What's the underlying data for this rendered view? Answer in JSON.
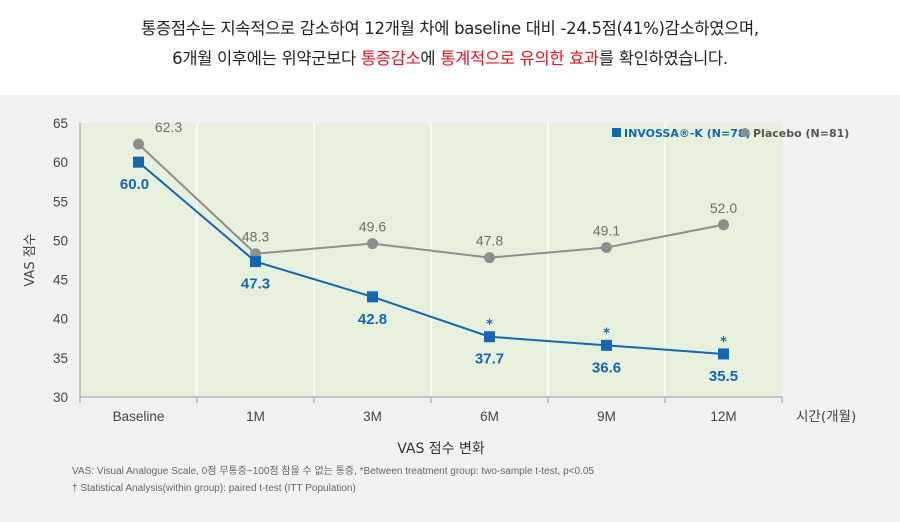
{
  "headline": {
    "line1": "통증점수는 지속적으로 감소하여 12개월 차에 baseline 대비 -24.5점(41%)감소하였으며,",
    "line2_prefix": "6개월 이후에는 위약군보다 ",
    "line2_highlight1": "통증감소",
    "line2_mid1": "에 ",
    "line2_highlight2": "통계적으로 유의한 효과",
    "line2_suffix": "를 확인하였습니다."
  },
  "colors": {
    "invossa": "#1466b3",
    "placebo": "#8e8e8e",
    "plot_bg": "#e6f0dc",
    "panel_bg": "#f1f1f1",
    "highlight": "#e0161f"
  },
  "chart_data": {
    "type": "line",
    "categories": [
      "Baseline",
      "1M",
      "3M",
      "6M",
      "9M",
      "12M"
    ],
    "x_unit_label": "시간(개월)",
    "xlabel": "VAS 점수 변화",
    "ylabel": "VAS 점수",
    "ylim": [
      30,
      65
    ],
    "yticks": [
      30,
      35,
      40,
      45,
      50,
      55,
      60,
      65
    ],
    "grid": "vertical",
    "legend_position": "top-right",
    "series": [
      {
        "name": "INVOSSA®-K (N=78)",
        "marker": "square",
        "values": [
          60.0,
          47.3,
          42.8,
          37.7,
          36.6,
          35.5
        ],
        "labels": [
          "60.0",
          "47.3",
          "42.8",
          "37.7",
          "36.6",
          "35.5"
        ],
        "significance_marks": [
          "",
          "",
          "",
          "*",
          "*",
          "*"
        ]
      },
      {
        "name": "Placebo (N=81)",
        "marker": "circle",
        "values": [
          62.3,
          48.3,
          49.6,
          47.8,
          49.1,
          52.0
        ],
        "labels": [
          "62.3",
          "48.3",
          "49.6",
          "47.8",
          "49.1",
          "52.0"
        ]
      }
    ]
  },
  "footnote": {
    "line1": "VAS: Visual Analogue Scale, 0점 무통증~100점 참을 수 없는 통증, *Between treatment group: two-sample t-test, p<0.05",
    "line2": "† Statistical Analysis(within group): paired t-test (ITT Population)"
  }
}
